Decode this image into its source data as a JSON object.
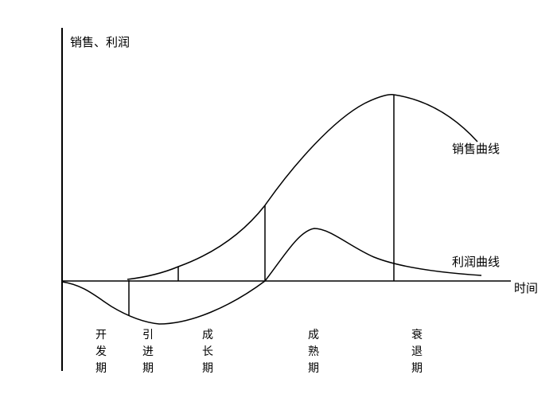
{
  "chart_data": {
    "type": "line",
    "ylabel": "销售、利润",
    "xlabel": "时间",
    "series": [
      {
        "name": "销售曲线"
      },
      {
        "name": "利润曲线"
      }
    ],
    "stages": [
      "开发期",
      "引进期",
      "成长期",
      "成熟期",
      "衰退期"
    ]
  }
}
